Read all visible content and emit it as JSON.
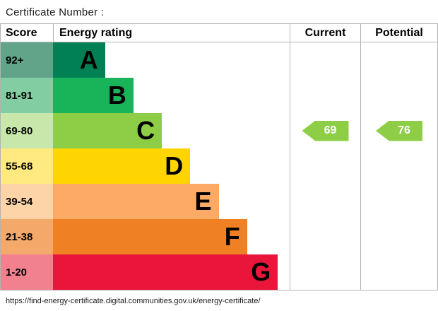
{
  "title": "Certificate Number :",
  "table": {
    "headers": {
      "score": "Score",
      "rating": "Energy rating",
      "current": "Current",
      "potential": "Potential"
    }
  },
  "bands": [
    {
      "score": "92+",
      "letter": "A",
      "color": "#008054",
      "tint": "#61a489",
      "width_pct": 22
    },
    {
      "score": "81-91",
      "letter": "B",
      "color": "#19b459",
      "tint": "#83cda3",
      "width_pct": 34
    },
    {
      "score": "69-80",
      "letter": "C",
      "color": "#8dce46",
      "tint": "#c7e7ab",
      "width_pct": 46
    },
    {
      "score": "55-68",
      "letter": "D",
      "color": "#ffd500",
      "tint": "#ffe980",
      "width_pct": 58
    },
    {
      "score": "39-54",
      "letter": "E",
      "color": "#fcaa65",
      "tint": "#fdd4a7",
      "width_pct": 70
    },
    {
      "score": "21-38",
      "letter": "F",
      "color": "#ef8023",
      "tint": "#f4a869",
      "width_pct": 82
    },
    {
      "score": "1-20",
      "letter": "G",
      "color": "#e9153b",
      "tint": "#f2818f",
      "width_pct": 95
    }
  ],
  "current": {
    "value": "69",
    "color": "#8dce46",
    "row_index": 2
  },
  "potential": {
    "value": "76",
    "color": "#8dce46",
    "row_index": 2
  },
  "footer": {
    "url": "https://find-energy-certificate.digital.communities.gov.uk/energy-certificate/"
  },
  "chart_data": {
    "type": "bar",
    "title": "Energy rating",
    "categories": [
      "A (92+)",
      "B (81-91)",
      "C (69-80)",
      "D (55-68)",
      "E (39-54)",
      "F (21-38)",
      "G (1-20)"
    ],
    "values": [
      22,
      34,
      46,
      58,
      70,
      82,
      95
    ],
    "band_colors": [
      "#008054",
      "#19b459",
      "#8dce46",
      "#ffd500",
      "#fcaa65",
      "#ef8023",
      "#e9153b"
    ],
    "annotations": [
      {
        "label": "Current",
        "value": 69,
        "band": "C"
      },
      {
        "label": "Potential",
        "value": 76,
        "band": "C"
      }
    ],
    "legend_position": "none",
    "grid": false
  }
}
